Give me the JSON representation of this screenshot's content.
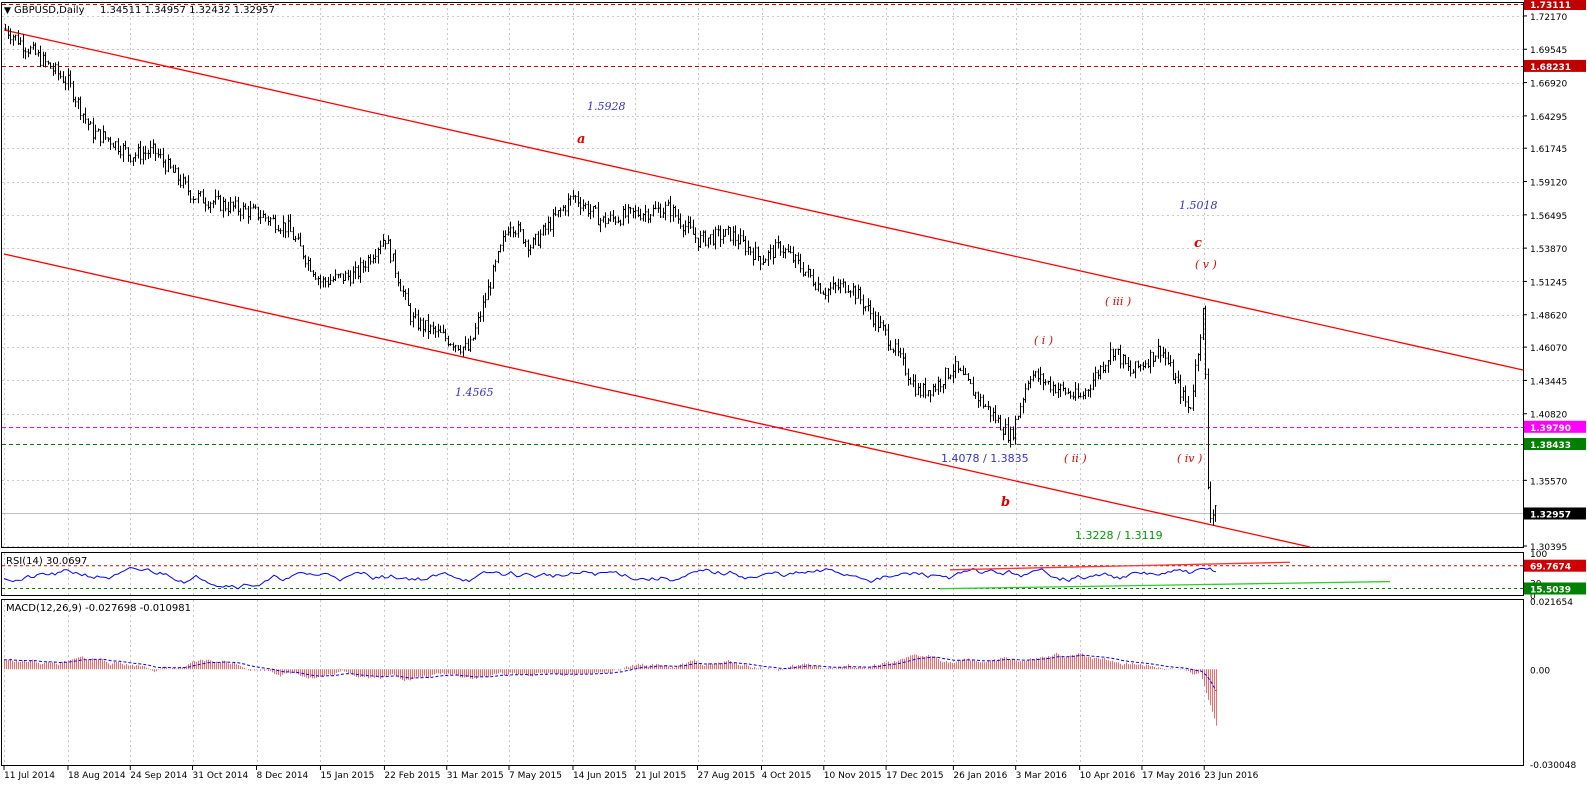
{
  "header": {
    "symbol": "GBPUSD,Daily",
    "ohlc": "1.34511 1.34957 1.32432 1.32957"
  },
  "rsi": {
    "title": "RSI(14) 30.0697"
  },
  "macd": {
    "title": "MACD(12,26,9) -0.027698 -0.010981"
  },
  "colors": {
    "candle": "#000000",
    "channel": "#ff0000",
    "wave_red": "#e00000",
    "wave_blue": "#3333cc",
    "wave_green": "#009900",
    "rsi_line": "#0000ff",
    "rsi_trend_top": "#ff3333",
    "rsi_trend_bottom": "#33cc33",
    "macd_hist": "#ff6666",
    "macd_signal": "#0000ff",
    "level_magenta": "#ff00ff",
    "level_green": "#008000",
    "level_red": "#c00000",
    "grid": "#c0c0c0"
  },
  "chart_data": [
    {
      "type": "candlestick",
      "title": "GBPUSD,Daily",
      "ylim": [
        1.30395,
        1.7311
      ],
      "price_ticks": [
        "1.72170",
        "1.69545",
        "1.66920",
        "1.64295",
        "1.61745",
        "1.59120",
        "1.56495",
        "1.53870",
        "1.51245",
        "1.48620",
        "1.46070",
        "1.43445",
        "1.40820",
        "1.35570",
        "1.30395"
      ],
      "date_ticks": [
        "11 Jul 2014",
        "18 Aug 2014",
        "24 Sep 2014",
        "31 Oct 2014",
        "8 Dec 2014",
        "15 Jan 2015",
        "22 Feb 2015",
        "31 Mar 2015",
        "7 May 2015",
        "14 Jun 2015",
        "21 Jul 2015",
        "27 Aug 2015",
        "4 Oct 2015",
        "10 Nov 2015",
        "17 Dec 2015",
        "26 Jan 2016",
        "3 Mar 2016",
        "10 Apr 2016",
        "17 May 2016",
        "23 Jun 2016"
      ],
      "close_path": [
        [
          "11 Jul 2014",
          1.712
        ],
        [
          "18 Aug 2014",
          1.669
        ],
        [
          "1 Sep 2014",
          1.63
        ],
        [
          "12 Sep 2014",
          1.624
        ],
        [
          "24 Sep 2014",
          1.612
        ],
        [
          "8 Oct 2014",
          1.615
        ],
        [
          "31 Oct 2014",
          1.58
        ],
        [
          "20 Nov 2014",
          1.572
        ],
        [
          "8 Dec 2014",
          1.566
        ],
        [
          "26 Dec 2014",
          1.555
        ],
        [
          "15 Jan 2015",
          1.512
        ],
        [
          "5 Feb 2015",
          1.518
        ],
        [
          "22 Feb 2015",
          1.548
        ],
        [
          "10 Mar 2015",
          1.482
        ],
        [
          "13 Apr 2015",
          1.458
        ],
        [
          "7 May 2015",
          1.56
        ],
        [
          "20 May 2015",
          1.54
        ],
        [
          "14 Jun 2015",
          1.58
        ],
        [
          "1 Jul 2015",
          1.56
        ],
        [
          "21 Jul 2015",
          1.566
        ],
        [
          "10 Aug 2015",
          1.57
        ],
        [
          "27 Aug 2015",
          1.545
        ],
        [
          "15 Sep 2015",
          1.55
        ],
        [
          "4 Oct 2015",
          1.53
        ],
        [
          "15 Oct 2015",
          1.54
        ],
        [
          "10 Nov 2015",
          1.505
        ],
        [
          "25 Nov 2015",
          1.51
        ],
        [
          "17 Dec 2015",
          1.47
        ],
        [
          "5 Jan 2016",
          1.425
        ],
        [
          "15 Jan 2016",
          1.43
        ],
        [
          "26 Jan 2016",
          1.445
        ],
        [
          "10 Feb 2016",
          1.42
        ],
        [
          "29 Feb 2016",
          1.39
        ],
        [
          "11 Mar 2016",
          1.44
        ],
        [
          "25 Mar 2016",
          1.43
        ],
        [
          "10 Apr 2016",
          1.42
        ],
        [
          "30 Apr 2016",
          1.46
        ],
        [
          "10 May 2016",
          1.44
        ],
        [
          "28 May 2016",
          1.46
        ],
        [
          "14 Jun 2016",
          1.41
        ],
        [
          "23 Jun 2016",
          1.498
        ],
        [
          "24 Jun 2016",
          1.365
        ],
        [
          "27 Jun 2016",
          1.322
        ],
        [
          "29 Jun 2016",
          1.34
        ],
        [
          "30 Jun 2016",
          1.33
        ]
      ],
      "levels": [
        {
          "label": "1.73111",
          "value": 1.73111,
          "style": "dashed",
          "color": "#c00000"
        },
        {
          "label": "1.68231",
          "value": 1.68231,
          "style": "dashed",
          "color": "#c00000"
        },
        {
          "label": "1.39790",
          "value": 1.3979,
          "style": "dashed",
          "color": "#ff00ff"
        },
        {
          "label": "1.38433",
          "value": 1.38433,
          "style": "dashed",
          "color": "#008000"
        },
        {
          "label": "1.32957",
          "value": 1.32957,
          "style": "solid",
          "color": "#c0c0c0"
        }
      ],
      "annotations": [
        {
          "text": "1.5928",
          "color": "blue"
        },
        {
          "text": "a",
          "color": "red"
        },
        {
          "text": "1.4565",
          "color": "blue"
        },
        {
          "text": "1.5018",
          "color": "blue"
        },
        {
          "text": "c",
          "color": "red"
        },
        {
          "text": "( v )",
          "color": "red"
        },
        {
          "text": "( iii )",
          "color": "red"
        },
        {
          "text": "( i )",
          "color": "red"
        },
        {
          "text": "( ii )",
          "color": "red"
        },
        {
          "text": "( iv )",
          "color": "red"
        },
        {
          "text": "1.4078 / 1.3835",
          "color": "blue"
        },
        {
          "text": "b",
          "color": "red"
        },
        {
          "text": "1.3228 / 1.3119",
          "color": "green"
        }
      ]
    },
    {
      "type": "line",
      "title": "RSI(14) 30.0697",
      "ylim": [
        0,
        100
      ],
      "y_ticks": [
        "100",
        "30",
        "0"
      ],
      "levels": [
        {
          "label": "69.7674",
          "value": 69.7674
        },
        {
          "label": "15.5039",
          "value": 15.5039
        }
      ]
    },
    {
      "type": "bar",
      "title": "MACD(12,26,9) -0.027698 -0.010981",
      "y_ticks": [
        "0.021654",
        "0.00",
        "-0.030048"
      ],
      "ylim": [
        -0.030048,
        0.021654
      ]
    }
  ]
}
